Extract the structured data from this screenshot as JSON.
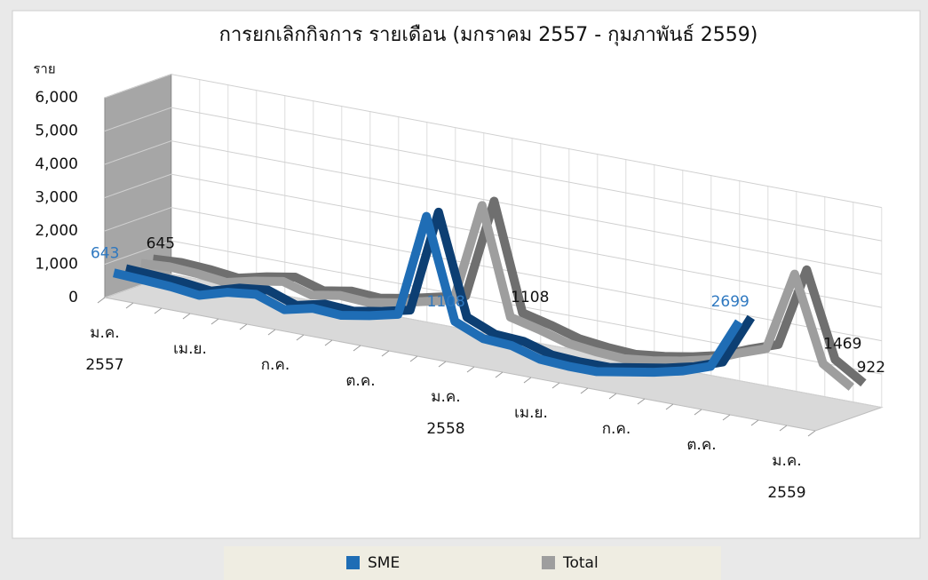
{
  "chart_data": {
    "type": "line3d",
    "title": "การยกเลิกกิจการ รายเดือน (มกราคม 2557 - กุมภาพันธ์ 2559)",
    "y_label": "ราย",
    "categories": [
      [
        "ม.ค.",
        "2557"
      ],
      null,
      null,
      [
        "เม.ย."
      ],
      null,
      null,
      [
        "ก.ค."
      ],
      null,
      null,
      [
        "ต.ค."
      ],
      null,
      null,
      [
        "ม.ค.",
        "2558"
      ],
      null,
      null,
      [
        "เม.ย."
      ],
      null,
      null,
      [
        "ก.ค."
      ],
      null,
      null,
      [
        "ต.ค."
      ],
      null,
      null,
      [
        "ม.ค.",
        "2559"
      ],
      null
    ],
    "series": [
      {
        "name": "SME",
        "color": "#1f6db5",
        "label_color": "#2e78c0",
        "values": [
          643,
          600,
          550,
          450,
          700,
          800,
          500,
          700,
          650,
          800,
          1000,
          4100,
          1108,
          750,
          700,
          450,
          400,
          400,
          550,
          700,
          900,
          1200,
          2699,
          null,
          null,
          null
        ],
        "labeled": [
          0,
          12,
          22
        ]
      },
      {
        "name": "Total",
        "color": "#9e9e9e",
        "label_color": "#111111",
        "values": [
          645,
          700,
          650,
          550,
          750,
          900,
          650,
          800,
          750,
          900,
          1100,
          1300,
          4300,
          1108,
          900,
          650,
          550,
          500,
          600,
          750,
          950,
          1300,
          1600,
          4000,
          1469,
          922
        ],
        "labeled": [
          0,
          13,
          24,
          25
        ]
      }
    ],
    "ylim": [
      0,
      6000
    ],
    "yticks": [
      0,
      {
        "value": 1000,
        "label": "1,000"
      },
      {
        "value": 2000,
        "label": "2,000"
      },
      {
        "value": 3000,
        "label": "3,000"
      },
      {
        "value": 4000,
        "label": "4,000"
      },
      {
        "value": 5000,
        "label": "5,000"
      },
      {
        "value": 6000,
        "label": "6,000"
      }
    ],
    "grid": true,
    "legend": "bottom"
  }
}
